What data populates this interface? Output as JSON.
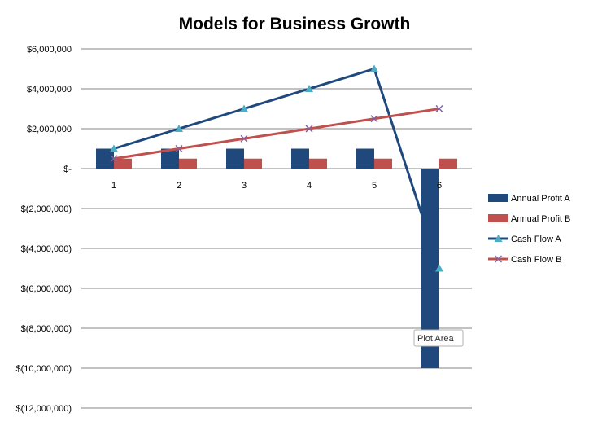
{
  "chart_data": {
    "type": "bar",
    "title": "Models for Business Growth",
    "categories": [
      "1",
      "2",
      "3",
      "4",
      "5",
      "6"
    ],
    "series": [
      {
        "name": "Annual Profit A",
        "kind": "bar",
        "color": "#1F497D",
        "values": [
          1000000,
          1000000,
          1000000,
          1000000,
          1000000,
          -10000000
        ]
      },
      {
        "name": "Annual Profit B",
        "kind": "bar",
        "color": "#C0504D",
        "values": [
          500000,
          500000,
          500000,
          500000,
          500000,
          500000
        ]
      },
      {
        "name": "Cash Flow A",
        "kind": "line",
        "marker": "triangle",
        "color": "#1F497D",
        "marker_color": "#4BACC6",
        "values": [
          1000000,
          2000000,
          3000000,
          4000000,
          5000000,
          -5000000
        ]
      },
      {
        "name": "Cash Flow B",
        "kind": "line",
        "marker": "x",
        "color": "#C0504D",
        "marker_color": "#8064A2",
        "values": [
          500000,
          1000000,
          1500000,
          2000000,
          2500000,
          3000000
        ]
      }
    ],
    "y_ticks": [
      6000000,
      4000000,
      2000000,
      0,
      -2000000,
      -4000000,
      -6000000,
      -8000000,
      -10000000,
      -12000000
    ],
    "y_tick_labels": [
      "$6,000,000",
      "$4,000,000",
      "$2,000,000",
      "$-",
      "$(2,000,000)",
      "$(4,000,000)",
      "$(6,000,000)",
      "$(8,000,000)",
      "$(10,000,000)",
      "$(12,000,000)"
    ],
    "ylim": [
      -12000000,
      6000000
    ],
    "grid": true,
    "legend_position": "right"
  },
  "tooltip": {
    "label": "Plot Area"
  }
}
